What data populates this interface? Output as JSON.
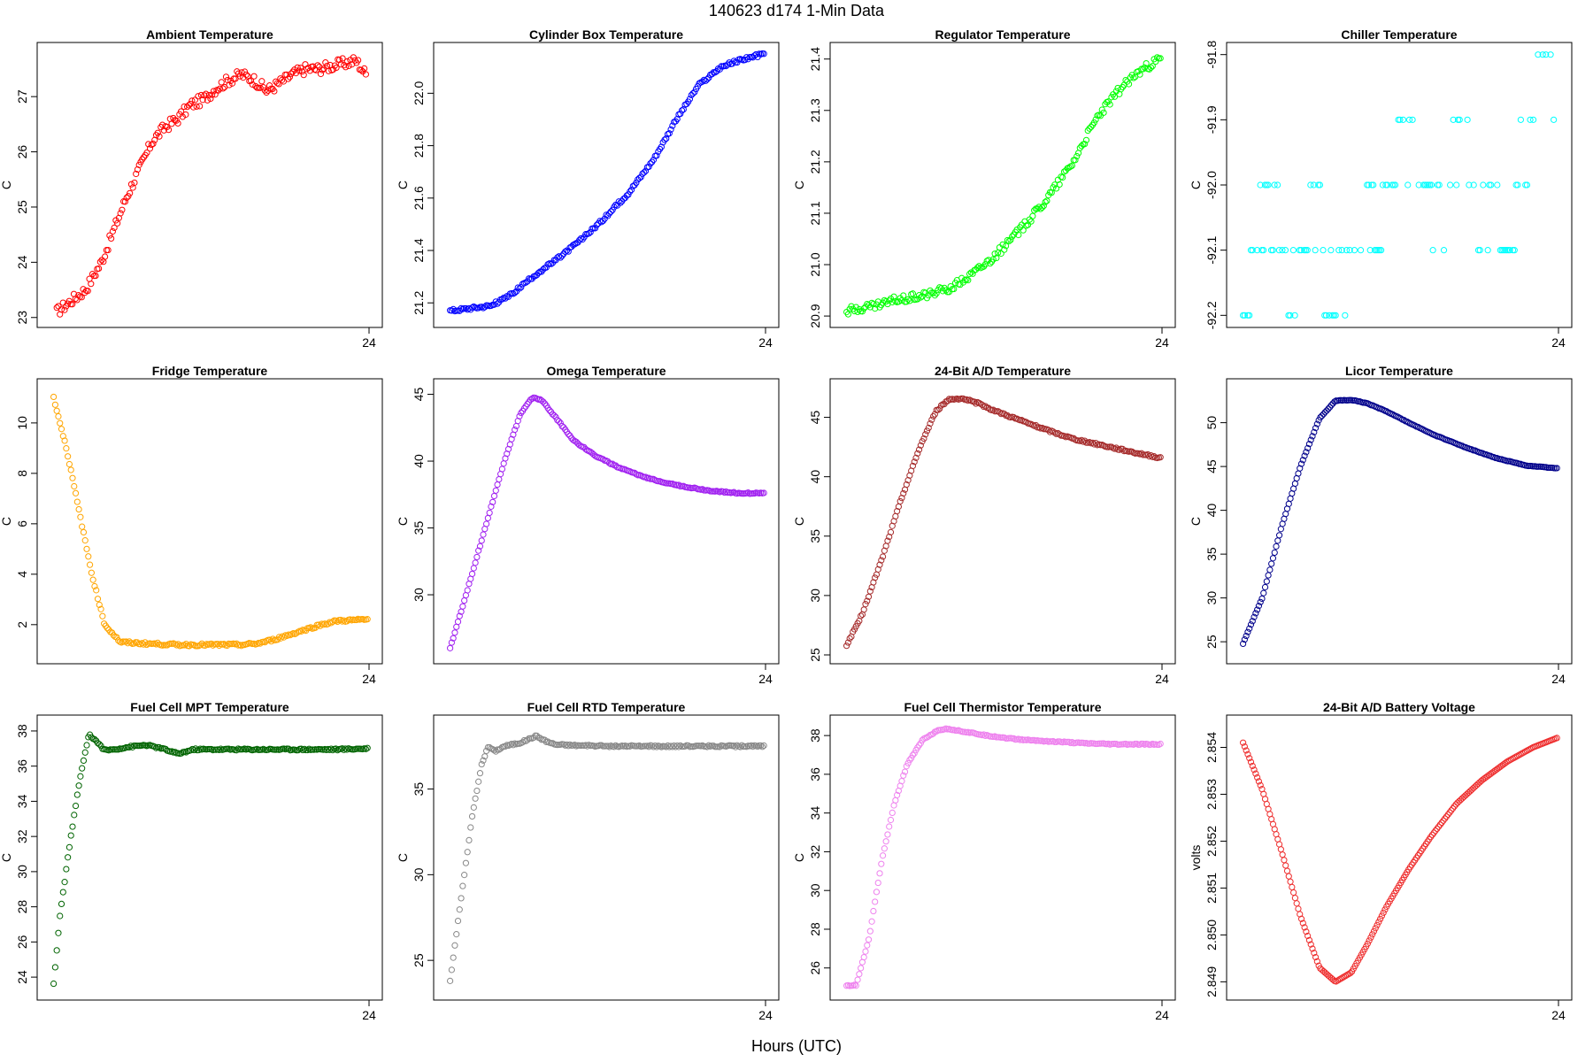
{
  "figure": {
    "title": "140623    d174    1-Min Data",
    "xlabel": "Hours (UTC)"
  },
  "chart_data": [
    {
      "type": "scatter",
      "title": "Ambient Temperature",
      "ylabel": "C",
      "color": "#ff0000",
      "xlim": [
        14,
        24
      ],
      "xticks": [
        24
      ],
      "ylim": [
        22.98,
        27.82
      ],
      "yticks": [
        23,
        24,
        25,
        26,
        27
      ],
      "x": [
        14.2,
        15.1,
        15.6,
        16.0,
        16.4,
        16.8,
        17.2,
        17.6,
        18.0,
        18.4,
        18.8,
        19.2,
        19.6,
        20.0,
        20.4,
        20.8,
        21.2,
        21.6,
        22.0,
        22.4,
        22.8,
        23.2,
        23.6,
        23.9
      ],
      "y": [
        23.1,
        23.5,
        24.0,
        24.6,
        25.2,
        25.7,
        26.2,
        26.45,
        26.6,
        26.85,
        26.95,
        27.15,
        27.3,
        27.4,
        27.3,
        27.1,
        27.25,
        27.4,
        27.5,
        27.5,
        27.55,
        27.6,
        27.65,
        27.4
      ],
      "noise": 0.1
    },
    {
      "type": "scatter",
      "title": "Cylinder Box Temperature",
      "ylabel": "C",
      "color": "#0000ff",
      "xlim": [
        14,
        24
      ],
      "xticks": [
        24
      ],
      "ylim": [
        21.14,
        22.16
      ],
      "yticks": [
        21.2,
        21.4,
        21.6,
        21.8,
        22.0
      ],
      "x": [
        14.1,
        15.4,
        16.0,
        16.7,
        17.5,
        18.3,
        19.0,
        19.7,
        20.5,
        21.2,
        21.9,
        22.6,
        23.3,
        23.95
      ],
      "y": [
        21.17,
        21.19,
        21.23,
        21.3,
        21.37,
        21.45,
        21.53,
        21.62,
        21.75,
        21.9,
        22.03,
        22.1,
        22.13,
        22.15
      ],
      "noise": 0.006
    },
    {
      "type": "scatter",
      "title": "Regulator Temperature",
      "ylabel": "C",
      "color": "#00ff00",
      "xlim": [
        14,
        24
      ],
      "xticks": [
        24
      ],
      "ylim": [
        20.895,
        21.415
      ],
      "yticks": [
        20.9,
        21.0,
        21.1,
        21.2,
        21.3,
        21.4
      ],
      "x": [
        14.1,
        15.0,
        15.6,
        16.4,
        17.2,
        18.0,
        18.8,
        19.6,
        20.4,
        21.2,
        22.0,
        22.8,
        23.4,
        23.95
      ],
      "y": [
        20.91,
        20.92,
        20.93,
        20.94,
        20.95,
        20.98,
        21.02,
        21.07,
        21.13,
        21.2,
        21.29,
        21.35,
        21.38,
        21.4
      ],
      "noise": 0.008
    },
    {
      "type": "scatter",
      "title": "Chiller Temperature",
      "ylabel": "C",
      "color": "#00ffff",
      "xlim": [
        14,
        24
      ],
      "xticks": [
        24
      ],
      "ylim": [
        -92.205,
        -91.795
      ],
      "yticks": [
        -92.2,
        -92.1,
        -92.0,
        -91.9,
        -91.8
      ],
      "x": [
        14.1,
        14.4,
        14.8,
        15.2,
        15.6,
        16.0,
        16.4,
        16.8,
        17.2,
        17.6,
        18.0,
        18.4,
        18.8,
        19.2,
        19.6,
        20.0,
        20.4,
        20.8,
        21.2,
        21.6,
        22.0,
        22.4,
        22.8,
        23.2,
        23.6,
        23.9
      ],
      "y": [
        -92.2,
        -92.1,
        -92.0,
        -92.1,
        -92.2,
        -92.1,
        -92.0,
        -92.2,
        -92.1,
        -92.1,
        -92.0,
        -92.1,
        -92.0,
        -91.9,
        -92.0,
        -92.0,
        -92.0,
        -91.9,
        -92.0,
        -92.1,
        -92.0,
        -92.1,
        -92.0,
        -91.9,
        -91.8,
        -91.9
      ],
      "noise": 0,
      "quantize": 0.1
    },
    {
      "type": "scatter",
      "title": "Fridge Temperature",
      "ylabel": "C",
      "color": "#ffa500",
      "xlim": [
        14,
        24
      ],
      "xticks": [
        24
      ],
      "ylim": [
        0.8,
        11.4
      ],
      "yticks": [
        2,
        4,
        6,
        8,
        10
      ],
      "x": [
        14.1,
        14.5,
        14.9,
        15.3,
        15.7,
        16.2,
        17.0,
        18.0,
        19.0,
        20.0,
        20.5,
        21.0,
        21.5,
        22.0,
        22.5,
        23.0,
        23.95
      ],
      "y": [
        11.0,
        9.0,
        6.5,
        4.0,
        2.0,
        1.3,
        1.25,
        1.2,
        1.2,
        1.2,
        1.25,
        1.4,
        1.6,
        1.8,
        2.0,
        2.15,
        2.2
      ],
      "noise": 0.05
    },
    {
      "type": "scatter",
      "title": "Omega Temperature",
      "ylabel": "C",
      "color": "#a020f0",
      "xlim": [
        14,
        24
      ],
      "xticks": [
        24
      ],
      "ylim": [
        25.5,
        45.5
      ],
      "yticks": [
        30,
        35,
        40,
        45
      ],
      "x": [
        14.1,
        14.6,
        15.2,
        15.8,
        16.3,
        16.7,
        17.0,
        17.5,
        18.0,
        18.6,
        19.4,
        20.2,
        21.2,
        22.2,
        23.2,
        23.95
      ],
      "y": [
        26.0,
        30.0,
        35.0,
        40.0,
        43.5,
        44.8,
        44.5,
        43.0,
        41.5,
        40.5,
        39.5,
        38.8,
        38.2,
        37.8,
        37.6,
        37.6
      ],
      "noise": 0.05
    },
    {
      "type": "scatter",
      "title": "24-Bit A/D Temperature",
      "ylabel": "C",
      "color": "#a52a2a",
      "xlim": [
        14,
        24
      ],
      "xticks": [
        24
      ],
      "ylim": [
        25.0,
        47.5
      ],
      "yticks": [
        25,
        30,
        35,
        40,
        45
      ],
      "x": [
        14.1,
        14.6,
        15.2,
        15.8,
        16.4,
        16.9,
        17.3,
        17.7,
        18.2,
        18.8,
        19.5,
        20.3,
        21.2,
        22.2,
        23.2,
        23.95
      ],
      "y": [
        25.8,
        28.5,
        33.0,
        38.0,
        42.5,
        45.5,
        46.5,
        46.6,
        46.2,
        45.5,
        44.8,
        44.0,
        43.2,
        42.6,
        42.0,
        41.6
      ],
      "noise": 0.08
    },
    {
      "type": "scatter",
      "title": "Licor Temperature",
      "ylabel": "C",
      "color": "#00008b",
      "xlim": [
        14,
        24
      ],
      "xticks": [
        24
      ],
      "ylim": [
        23.5,
        54.0
      ],
      "yticks": [
        25,
        30,
        35,
        40,
        45,
        50
      ],
      "x": [
        14.1,
        14.7,
        15.3,
        15.9,
        16.5,
        17.0,
        17.5,
        18.0,
        18.6,
        19.3,
        20.1,
        21.0,
        22.0,
        23.0,
        23.95
      ],
      "y": [
        24.8,
        30.0,
        38.0,
        45.0,
        50.5,
        52.5,
        52.6,
        52.2,
        51.3,
        50.0,
        48.6,
        47.3,
        46.0,
        45.1,
        44.8
      ],
      "noise": 0.03
    },
    {
      "type": "scatter",
      "title": "Fuel Cell MPT Temperature",
      "ylabel": "C",
      "color": "#006400",
      "xlim": [
        14,
        24
      ],
      "xticks": [
        24
      ],
      "ylim": [
        23.2,
        38.4
      ],
      "yticks": [
        24,
        26,
        28,
        30,
        32,
        34,
        36,
        38
      ],
      "x": [
        14.1,
        14.3,
        14.6,
        14.9,
        15.2,
        15.4,
        15.7,
        16.0,
        16.5,
        17.0,
        17.5,
        18.0,
        18.5,
        19.0,
        20.0,
        21.0,
        22.0,
        23.0,
        23.95
      ],
      "y": [
        23.6,
        27.5,
        31.5,
        35.0,
        37.8,
        37.5,
        36.9,
        36.95,
        37.1,
        37.2,
        37.0,
        36.7,
        36.95,
        36.95,
        36.95,
        36.95,
        36.95,
        36.95,
        37.0
      ],
      "noise": 0.05
    },
    {
      "type": "scatter",
      "title": "Fuel Cell RTD Temperature",
      "ylabel": "C",
      "color": "#888888",
      "xlim": [
        14,
        24
      ],
      "xticks": [
        24
      ],
      "ylim": [
        23.2,
        38.8
      ],
      "yticks": [
        25,
        30,
        35
      ],
      "x": [
        14.1,
        14.4,
        14.8,
        15.1,
        15.3,
        15.5,
        15.8,
        16.3,
        16.8,
        17.1,
        17.4,
        18.0,
        19.0,
        20.0,
        21.0,
        22.0,
        23.0,
        23.95
      ],
      "y": [
        23.8,
        28.0,
        33.5,
        36.5,
        37.5,
        37.2,
        37.5,
        37.7,
        38.1,
        37.8,
        37.6,
        37.55,
        37.5,
        37.5,
        37.5,
        37.5,
        37.5,
        37.5
      ],
      "noise": 0.05
    },
    {
      "type": "scatter",
      "title": "Fuel Cell Thermistor Temperature",
      "ylabel": "C",
      "color": "#ee82ee",
      "xlim": [
        14,
        24
      ],
      "xticks": [
        24
      ],
      "ylim": [
        24.8,
        38.6
      ],
      "yticks": [
        26,
        28,
        30,
        32,
        34,
        36,
        38
      ],
      "x": [
        14.1,
        14.4,
        14.8,
        15.2,
        15.6,
        16.0,
        16.5,
        17.0,
        17.3,
        17.8,
        18.5,
        19.5,
        20.5,
        21.5,
        22.5,
        23.95
      ],
      "y": [
        25.1,
        25.1,
        27.5,
        31.5,
        34.5,
        36.5,
        37.8,
        38.3,
        38.35,
        38.2,
        38.0,
        37.8,
        37.7,
        37.6,
        37.55,
        37.55
      ],
      "noise": 0.03
    },
    {
      "type": "scatter",
      "title": "24-Bit A/D Battery Voltage",
      "ylabel": "volts",
      "color": "#ee2c2c",
      "xlim": [
        14,
        24
      ],
      "xticks": [
        24
      ],
      "ylim": [
        2.8488,
        2.8545
      ],
      "yticks": [
        2.849,
        2.85,
        2.851,
        2.852,
        2.853,
        2.854
      ],
      "x": [
        14.1,
        14.7,
        15.3,
        15.9,
        16.5,
        17.0,
        17.5,
        18.0,
        18.6,
        19.3,
        20.0,
        20.8,
        21.6,
        22.4,
        23.2,
        23.95
      ],
      "y": [
        2.8541,
        2.8531,
        2.8518,
        2.8504,
        2.8493,
        2.849,
        2.8492,
        2.8498,
        2.8506,
        2.8514,
        2.8521,
        2.8528,
        2.8533,
        2.8537,
        2.854,
        2.8542
      ],
      "noise": 0
    }
  ]
}
